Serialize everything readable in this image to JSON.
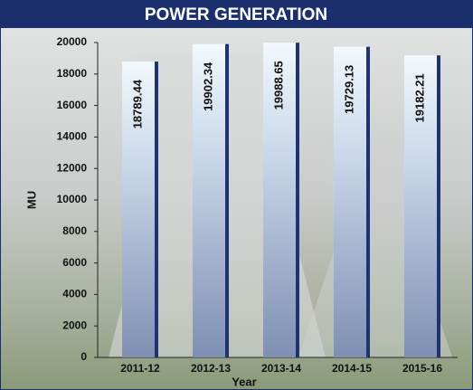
{
  "chart_data": {
    "type": "bar",
    "title": "POWER GENERATION",
    "x_label": "Year",
    "y_label": "MU",
    "categories": [
      "2011-12",
      "2012-13",
      "2013-14",
      "2014-15",
      "2015-16"
    ],
    "values": [
      18789.44,
      19902.34,
      19988.65,
      19729.13,
      19182.21
    ],
    "color": "#7f8fb2",
    "ylim": [
      0,
      20000
    ],
    "yticks": [
      0,
      2000,
      4000,
      6000,
      8000,
      10000,
      12000,
      14000,
      16000,
      18000,
      20000
    ],
    "grid": false
  }
}
